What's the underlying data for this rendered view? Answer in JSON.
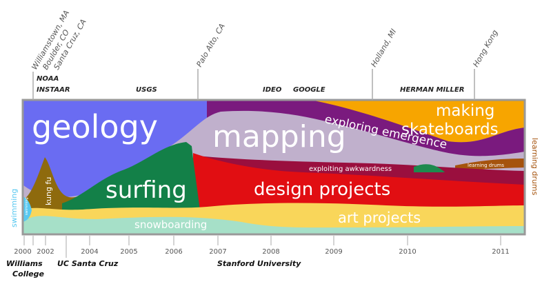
{
  "locations": [
    "Williamstown, MA",
    "Boulder, CO",
    "Santa Cruz, CA",
    "Palo Alto, CA",
    "Holland, MI",
    "Hong Kong"
  ],
  "employers": [
    "NOAA",
    "INSTAAR",
    "USGS",
    "IDEO",
    "GOOGLE",
    "HERMAN MILLER"
  ],
  "years": [
    "2000",
    "2002",
    "2004",
    "2005",
    "2006",
    "2007",
    "2008",
    "2009",
    "2010",
    "2011"
  ],
  "schools": [
    "Williams",
    "College",
    "UC Santa Cruz",
    "Stanford University"
  ],
  "streams": [
    "geology",
    "mapping",
    "surfing",
    "design projects",
    "art projects",
    "snowboarding",
    "making",
    "skateboards",
    "exploring emergence",
    "exploiting awkwardness",
    "learning drums",
    "kung fu",
    "swimming"
  ],
  "side_labels": [
    "swimming",
    "learning drums"
  ]
}
